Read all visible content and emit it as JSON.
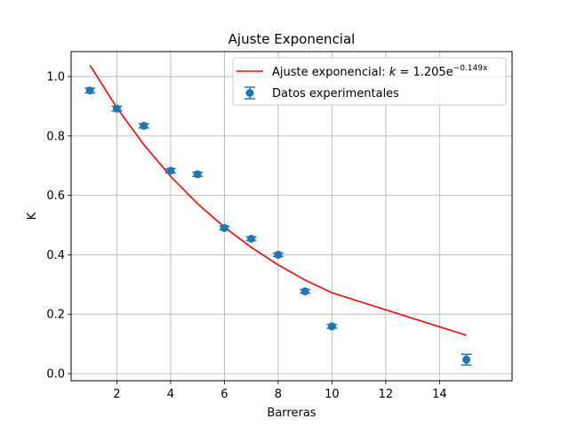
{
  "chart_data": {
    "type": "scatter",
    "title": "Ajuste Exponencial",
    "xlabel": "Barreras",
    "ylabel": "K",
    "xlim": [
      0.3,
      16.7
    ],
    "ylim": [
      -0.024,
      1.084
    ],
    "xticks": [
      2,
      4,
      6,
      8,
      10,
      12,
      14
    ],
    "yticks": [
      0.0,
      0.2,
      0.4,
      0.6,
      0.8,
      1.0
    ],
    "xtick_labels": [
      "2",
      "4",
      "6",
      "8",
      "10",
      "12",
      "14"
    ],
    "ytick_labels": [
      "0.0",
      "0.2",
      "0.4",
      "0.6",
      "0.8",
      "1.0"
    ],
    "grid": true,
    "legend_position": "top-right",
    "series": [
      {
        "name": "Datos experimentales",
        "kind": "errorbar",
        "color": "#1f77b4",
        "x": [
          1,
          2,
          3,
          4,
          5,
          6,
          7,
          8,
          9,
          10,
          15
        ],
        "y": [
          0.953,
          0.892,
          0.834,
          0.683,
          0.671,
          0.49,
          0.454,
          0.4,
          0.277,
          0.159,
          0.047
        ],
        "yerr": [
          0.008,
          0.008,
          0.007,
          0.007,
          0.007,
          0.006,
          0.006,
          0.006,
          0.006,
          0.006,
          0.018
        ]
      },
      {
        "name": "Ajuste exponencial: k = 1.205e^{−0.149x}",
        "kind": "line",
        "color": "#ff0000",
        "x": [
          1,
          2,
          3,
          4,
          5,
          6,
          7,
          8,
          9,
          10,
          15
        ],
        "y": [
          1.038,
          0.895,
          0.771,
          0.664,
          0.572,
          0.493,
          0.425,
          0.366,
          0.315,
          0.272,
          0.129
        ]
      }
    ],
    "legend": {
      "fit_label_prefix": "Ajuste exponencial: ",
      "fit_label_var": "k",
      "fit_label_eq": " = 1.205e",
      "fit_label_exp": "−0.149x",
      "data_label": "Datos experimentales"
    }
  }
}
